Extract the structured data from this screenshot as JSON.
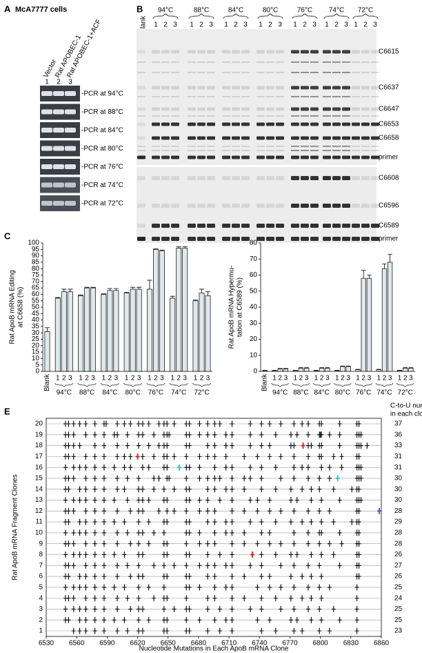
{
  "panel_a": {
    "letter": "A",
    "title": "McA7777 cells",
    "lanes": [
      "Vector",
      "Rat APOBEC-1",
      "Rat APOBEC-1+ACF"
    ],
    "lane_numbers": [
      "1",
      "2",
      "3"
    ],
    "rows": [
      "-PCR at 94°C",
      "-PCR at 88°C",
      "-PCR at 84°C",
      "-PCR at 80°C",
      "-PCR at 76°C",
      "-PCR at 74°C",
      "-PCR at 72°C"
    ]
  },
  "panel_b": {
    "letter": "B",
    "blank": "Blank",
    "temperatures": [
      "94°C",
      "88°C",
      "84°C",
      "80°C",
      "76°C",
      "74°C",
      "72°C"
    ],
    "lane_numbers": [
      "1",
      "2",
      "3"
    ],
    "upper_labels": [
      "C6615",
      "C6637",
      "C6647",
      "C6653",
      "C6658",
      "primer"
    ],
    "lower_labels": [
      "C6608",
      "C6596",
      "C6589",
      "primer"
    ]
  },
  "chart_data": [
    {
      "type": "bar",
      "letter": "C",
      "ylabel": [
        "Rat ApoB mRNA Editing",
        "at C6658 (%)"
      ],
      "categories": [
        "Blank",
        "1",
        "2",
        "3",
        "1",
        "2",
        "3",
        "1",
        "2",
        "3",
        "1",
        "2",
        "3",
        "1",
        "2",
        "3",
        "1",
        "2",
        "3",
        "1",
        "2",
        "3"
      ],
      "groups": [
        "94°C",
        "88°C",
        "84°C",
        "80°C",
        "76°C",
        "74°C",
        "72°C"
      ],
      "values": [
        31,
        57,
        62,
        62,
        59,
        65,
        65,
        60,
        63,
        63,
        61,
        64,
        64,
        64,
        95,
        94,
        57,
        96,
        96,
        55,
        61,
        59
      ],
      "errors": [
        3,
        0.5,
        2,
        2,
        0.5,
        0.5,
        0.5,
        0.5,
        1.5,
        1.5,
        0.5,
        1.5,
        1.5,
        7,
        0.5,
        0.5,
        1.5,
        1,
        1,
        0.5,
        3,
        3
      ],
      "ylim": [
        0,
        100
      ],
      "yticks": [
        0,
        5,
        10,
        15,
        20,
        25,
        30,
        35,
        40,
        45,
        50,
        55,
        60,
        65,
        70,
        75,
        80,
        85,
        90,
        95,
        100
      ],
      "color": "#dfe8ec"
    },
    {
      "type": "bar",
      "letter": "D",
      "ylabel": [
        "Rat ApoB mRNA Hypermu-",
        "tation at C6589 (%)"
      ],
      "categories": [
        "Blank",
        "1",
        "2",
        "3",
        "1",
        "2",
        "3",
        "1",
        "2",
        "3",
        "1",
        "2",
        "3",
        "1",
        "2",
        "3",
        "1",
        "2",
        "3",
        "1",
        "2",
        "3"
      ],
      "groups": [
        "94°C",
        "88°C",
        "84°C",
        "80°C",
        "76°C",
        "74°C",
        "72°C"
      ],
      "values": [
        0.5,
        0.5,
        1.5,
        1.5,
        0.5,
        2,
        2,
        0.5,
        2,
        2,
        0.5,
        3,
        3,
        1,
        58,
        58,
        1,
        64,
        68,
        0.5,
        2,
        2
      ],
      "errors": [
        0.2,
        0.2,
        0.3,
        0.3,
        0.2,
        0.3,
        0.3,
        0.2,
        0.3,
        0.3,
        0.2,
        0.3,
        0.3,
        0.3,
        5,
        2,
        0.3,
        3,
        5,
        0.2,
        0.3,
        0.3
      ],
      "ylim": [
        0,
        80
      ],
      "yticks": [
        0,
        10,
        20,
        30,
        40,
        50,
        60,
        70,
        80
      ],
      "color": "#dfe8ec"
    },
    {
      "type": "mutation_map",
      "letter": "E",
      "xlabel": "Nucleotide Mutations in Each ApoB mRNA Clone",
      "ylabel": "Rat ApoB mRNA Fragment Clones",
      "count_header": [
        "C-to-U number",
        "in each clone"
      ],
      "clones": [
        20,
        19,
        18,
        17,
        16,
        15,
        14,
        13,
        12,
        11,
        10,
        9,
        8,
        7,
        6,
        5,
        4,
        3,
        2,
        1
      ],
      "counts": [
        37,
        36,
        33,
        31,
        31,
        30,
        30,
        30,
        28,
        29,
        28,
        28,
        26,
        27,
        26,
        25,
        24,
        25,
        25,
        23
      ],
      "mutations": [
        [
          6549,
          6552,
          6557,
          6563,
          6569,
          6578,
          6587,
          6589,
          6600,
          6607,
          6613,
          6621,
          6625,
          6631,
          6641,
          6646,
          6649,
          6656,
          6668,
          6671,
          6681,
          6689,
          6696,
          6701,
          6713,
          6731,
          6742,
          6750,
          6761,
          6774,
          6782,
          6788,
          6799,
          6801,
          6819,
          6836,
          6838
        ],
        [
          6549,
          6552,
          6557,
          6569,
          6578,
          6587,
          6597,
          6600,
          6610,
          6621,
          6625,
          6636,
          6646,
          6649,
          6651,
          6668,
          6671,
          6681,
          6689,
          6696,
          6707,
          6713,
          6731,
          6742,
          6756,
          6771,
          6777,
          6788,
          6799,
          6800,
          6801,
          6809,
          6819,
          6836,
          6838,
          6840
        ],
        [
          6549,
          6552,
          6557,
          6563,
          6578,
          6587,
          6600,
          6610,
          6621,
          6631,
          6641,
          6646,
          6649,
          6668,
          6671,
          6689,
          6696,
          6707,
          6713,
          6731,
          6742,
          6750,
          6771,
          6774,
          6788,
          6791,
          6799,
          6801,
          6819,
          6836,
          6838,
          6840,
          6846
        ],
        [
          6549,
          6552,
          6557,
          6569,
          6578,
          6587,
          6600,
          6607,
          6613,
          6625,
          6636,
          6646,
          6649,
          6656,
          6668,
          6681,
          6689,
          6696,
          6707,
          6725,
          6738,
          6750,
          6761,
          6774,
          6788,
          6799,
          6801,
          6813,
          6821,
          6836,
          6838
        ],
        [
          6549,
          6557,
          6563,
          6569,
          6578,
          6587,
          6597,
          6607,
          6613,
          6625,
          6631,
          6646,
          6649,
          6668,
          6671,
          6681,
          6696,
          6707,
          6713,
          6731,
          6742,
          6756,
          6774,
          6782,
          6788,
          6801,
          6809,
          6821,
          6836,
          6838,
          6840
        ],
        [
          6549,
          6552,
          6557,
          6569,
          6578,
          6587,
          6600,
          6610,
          6621,
          6636,
          6641,
          6649,
          6651,
          6668,
          6681,
          6689,
          6696,
          6701,
          6713,
          6725,
          6731,
          6742,
          6761,
          6774,
          6788,
          6799,
          6809,
          6836,
          6838,
          6840
        ],
        [
          6549,
          6552,
          6563,
          6569,
          6578,
          6587,
          6600,
          6607,
          6621,
          6625,
          6636,
          6646,
          6656,
          6668,
          6671,
          6689,
          6696,
          6707,
          6713,
          6725,
          6742,
          6756,
          6771,
          6782,
          6791,
          6799,
          6813,
          6831,
          6836,
          6838
        ],
        [
          6549,
          6557,
          6563,
          6569,
          6578,
          6587,
          6597,
          6610,
          6621,
          6625,
          6631,
          6646,
          6649,
          6668,
          6671,
          6681,
          6689,
          6701,
          6713,
          6731,
          6738,
          6750,
          6771,
          6777,
          6791,
          6801,
          6819,
          6836,
          6838,
          6840
        ],
        [
          6549,
          6552,
          6557,
          6569,
          6578,
          6587,
          6600,
          6613,
          6621,
          6625,
          6641,
          6649,
          6656,
          6668,
          6681,
          6689,
          6696,
          6713,
          6725,
          6738,
          6750,
          6761,
          6774,
          6788,
          6799,
          6809,
          6836,
          6838
        ],
        [
          6549,
          6552,
          6563,
          6569,
          6578,
          6587,
          6597,
          6607,
          6621,
          6631,
          6646,
          6649,
          6668,
          6671,
          6689,
          6696,
          6707,
          6713,
          6731,
          6742,
          6756,
          6771,
          6782,
          6791,
          6801,
          6813,
          6831,
          6836,
          6838
        ],
        [
          6549,
          6557,
          6563,
          6569,
          6578,
          6587,
          6600,
          6610,
          6621,
          6625,
          6636,
          6646,
          6668,
          6671,
          6681,
          6696,
          6707,
          6713,
          6725,
          6742,
          6750,
          6774,
          6788,
          6799,
          6801,
          6819,
          6836,
          6838
        ],
        [
          6549,
          6552,
          6557,
          6569,
          6578,
          6587,
          6600,
          6613,
          6621,
          6631,
          6646,
          6649,
          6668,
          6681,
          6689,
          6696,
          6713,
          6725,
          6738,
          6750,
          6761,
          6774,
          6788,
          6799,
          6809,
          6821,
          6836,
          6838
        ],
        [
          6549,
          6557,
          6563,
          6569,
          6578,
          6587,
          6597,
          6607,
          6621,
          6625,
          6646,
          6649,
          6668,
          6671,
          6689,
          6701,
          6713,
          6742,
          6756,
          6771,
          6777,
          6791,
          6801,
          6813,
          6836,
          6838
        ],
        [
          6549,
          6552,
          6557,
          6569,
          6578,
          6587,
          6600,
          6610,
          6621,
          6636,
          6646,
          6656,
          6668,
          6681,
          6689,
          6696,
          6707,
          6713,
          6731,
          6742,
          6761,
          6774,
          6788,
          6799,
          6819,
          6836,
          6838
        ],
        [
          6549,
          6552,
          6563,
          6569,
          6578,
          6587,
          6600,
          6613,
          6621,
          6625,
          6646,
          6649,
          6668,
          6671,
          6689,
          6696,
          6713,
          6725,
          6742,
          6750,
          6771,
          6782,
          6791,
          6801,
          6836,
          6838
        ],
        [
          6549,
          6557,
          6563,
          6569,
          6578,
          6587,
          6597,
          6607,
          6621,
          6631,
          6646,
          6668,
          6671,
          6681,
          6696,
          6707,
          6713,
          6738,
          6750,
          6761,
          6774,
          6788,
          6799,
          6809,
          6836
        ],
        [
          6549,
          6552,
          6557,
          6569,
          6578,
          6587,
          6600,
          6610,
          6621,
          6636,
          6646,
          6649,
          6668,
          6689,
          6696,
          6713,
          6725,
          6742,
          6756,
          6771,
          6782,
          6791,
          6801,
          6836
        ],
        [
          6549,
          6557,
          6563,
          6569,
          6578,
          6587,
          6600,
          6613,
          6621,
          6625,
          6646,
          6656,
          6668,
          6671,
          6689,
          6701,
          6713,
          6731,
          6742,
          6761,
          6774,
          6788,
          6799,
          6813,
          6836
        ],
        [
          6549,
          6552,
          6563,
          6569,
          6578,
          6587,
          6597,
          6607,
          6621,
          6631,
          6646,
          6649,
          6668,
          6681,
          6696,
          6707,
          6713,
          6738,
          6750,
          6771,
          6777,
          6791,
          6801,
          6819,
          6836
        ],
        [
          6557,
          6563,
          6569,
          6578,
          6587,
          6600,
          6610,
          6621,
          6625,
          6646,
          6649,
          6668,
          6671,
          6689,
          6701,
          6713,
          6742,
          6756,
          6774,
          6782,
          6799,
          6809,
          6836
        ]
      ],
      "highlights": [
        {
          "clone": 17,
          "x": 6620,
          "color": "#d02020"
        },
        {
          "clone": 16,
          "x": 6661,
          "color": "#20c8d8"
        },
        {
          "clone": 18,
          "x": 6783,
          "color": "#d02020"
        },
        {
          "clone": 15,
          "x": 6817,
          "color": "#20c8d8"
        },
        {
          "clone": 12,
          "x": 6858,
          "color": "#5a3cc8"
        },
        {
          "clone": 8,
          "x": 6733,
          "color": "#d02020"
        }
      ],
      "xlim": [
        6530,
        6860
      ],
      "xticks": [
        6530,
        6560,
        6590,
        6620,
        6650,
        6680,
        6710,
        6740,
        6770,
        6800,
        6830,
        6860
      ]
    }
  ]
}
